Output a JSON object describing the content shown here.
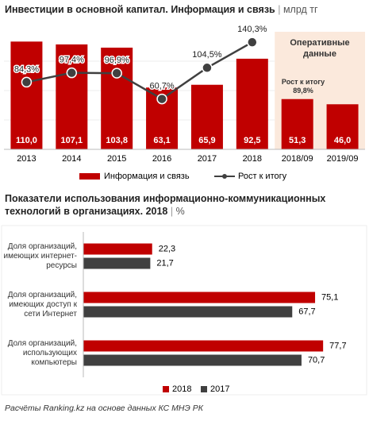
{
  "chart_data": [
    {
      "type": "bar",
      "title": "Инвестиции в основной капитал. Информация и связь",
      "unit": "млрд тг",
      "categories": [
        "2013",
        "2014",
        "2015",
        "2016",
        "2017",
        "2018",
        "2018/09",
        "2019/09"
      ],
      "series": [
        {
          "name": "Информация и связь",
          "color": "#c00000",
          "values": [
            110.0,
            107.1,
            103.8,
            63.1,
            65.9,
            92.5,
            51.3,
            46.0
          ],
          "value_labels": [
            "110,0",
            "107,1",
            "103,8",
            "63,1",
            "65,9",
            "92,5",
            "51,3",
            "46,0"
          ]
        },
        {
          "name": "Рост к итогу",
          "type": "line",
          "axis": "y2",
          "color": "#404040",
          "values": [
            84.3,
            97.4,
            96.9,
            60.7,
            104.5,
            140.3,
            null,
            null
          ],
          "value_labels": [
            "84,3%",
            "97,4%",
            "96,9%",
            "60,7%",
            "104,5%",
            "140,3%",
            null,
            null
          ]
        }
      ],
      "annotations": [
        "Оперативные данные",
        "Рост к итогу 89,8%"
      ],
      "ylim": [
        0,
        120
      ],
      "y2lim": [
        -10,
        155
      ]
    },
    {
      "type": "hbar",
      "title": "Показатели использования информационно-коммуникационных технологий в организациях. 2018",
      "unit": "%",
      "categories": [
        "Доля организаций, имеющих интернет-ресурсы",
        "Доля организаций, имеющих доступ к сети Интернет",
        "Доля организаций, использующих компьютеры"
      ],
      "series": [
        {
          "name": "2018",
          "color": "#c00000",
          "values": [
            22.3,
            75.1,
            77.7
          ],
          "value_labels": [
            "22,3",
            "75,1",
            "77,7"
          ]
        },
        {
          "name": "2017",
          "color": "#404040",
          "values": [
            21.7,
            67.7,
            70.7
          ],
          "value_labels": [
            "21,7",
            "67,7",
            "70,7"
          ]
        }
      ],
      "xlim": [
        0,
        90
      ]
    }
  ],
  "source": "Расчёты Ranking.kz на основе данных КС МНЭ РК"
}
